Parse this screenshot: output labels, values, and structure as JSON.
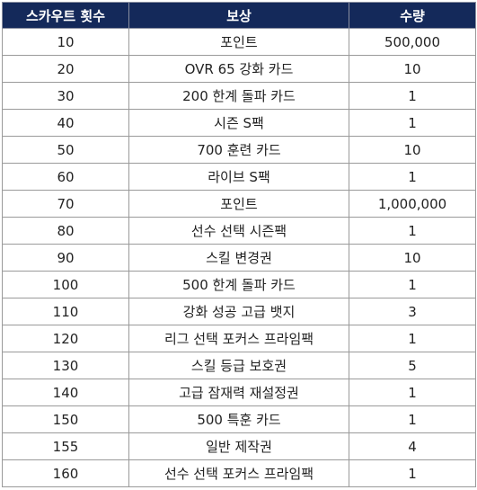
{
  "table": {
    "headers": {
      "count": "스카우트 횟수",
      "reward": "보상",
      "quantity": "수량"
    },
    "rows": [
      {
        "count": "10",
        "reward": "포인트",
        "quantity": "500,000"
      },
      {
        "count": "20",
        "reward": "OVR 65 강화 카드",
        "quantity": "10"
      },
      {
        "count": "30",
        "reward": "200 한계 돌파 카드",
        "quantity": "1"
      },
      {
        "count": "40",
        "reward": "시즌 S팩",
        "quantity": "1"
      },
      {
        "count": "50",
        "reward": "700 훈련 카드",
        "quantity": "10"
      },
      {
        "count": "60",
        "reward": "라이브 S팩",
        "quantity": "1"
      },
      {
        "count": "70",
        "reward": "포인트",
        "quantity": "1,000,000"
      },
      {
        "count": "80",
        "reward": "선수 선택 시즌팩",
        "quantity": "1"
      },
      {
        "count": "90",
        "reward": "스킬 변경권",
        "quantity": "10"
      },
      {
        "count": "100",
        "reward": "500 한계 돌파 카드",
        "quantity": "1"
      },
      {
        "count": "110",
        "reward": "강화 성공 고급 뱃지",
        "quantity": "3"
      },
      {
        "count": "120",
        "reward": "리그 선택 포커스 프라임팩",
        "quantity": "1"
      },
      {
        "count": "130",
        "reward": "스킬 등급 보호권",
        "quantity": "5"
      },
      {
        "count": "140",
        "reward": "고급 잠재력 재설정권",
        "quantity": "1"
      },
      {
        "count": "150",
        "reward": "500 특훈 카드",
        "quantity": "1"
      },
      {
        "count": "155",
        "reward": "일반 제작권",
        "quantity": "4"
      },
      {
        "count": "160",
        "reward": "선수 선택 포커스 프라임팩",
        "quantity": "1"
      }
    ]
  },
  "colors": {
    "header_bg": "#14295a",
    "header_text": "#ffffff",
    "border": "#9a9a9a"
  }
}
